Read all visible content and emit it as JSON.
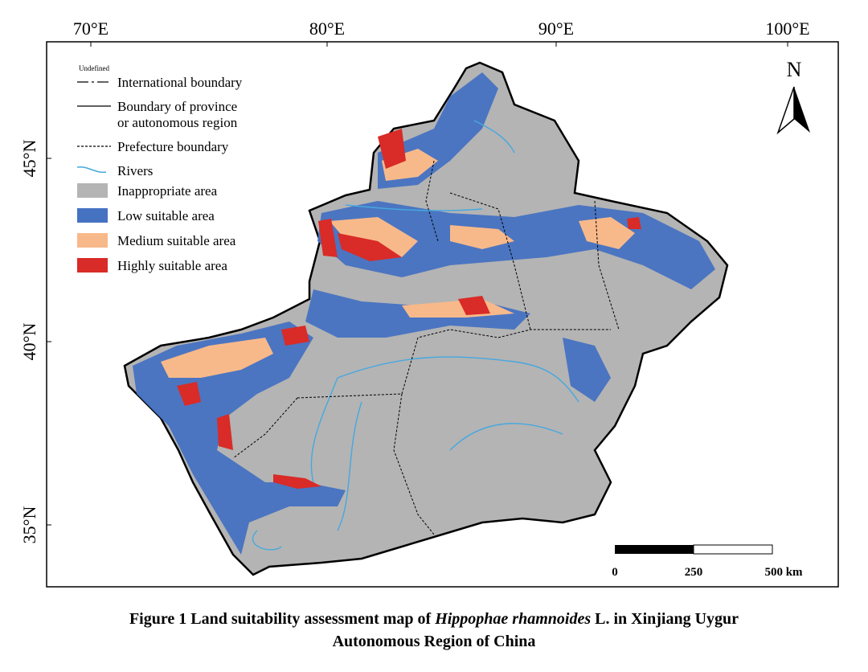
{
  "graticule": {
    "longitudes": [
      "70°E",
      "80°E",
      "90°E",
      "100°E"
    ],
    "latitudes": [
      "45°N",
      "40°N",
      "35°N"
    ]
  },
  "legend": {
    "undefined_note": "Undefined",
    "lines": [
      {
        "label": "International boundary",
        "style": "dashdot"
      },
      {
        "label": "Boundary of province",
        "label2": "or autonomous region",
        "style": "solid"
      },
      {
        "label": "Prefecture boundary",
        "style": "dotted"
      },
      {
        "label": "Rivers",
        "style": "river"
      }
    ],
    "areas": [
      {
        "label": "Inappropriate area",
        "color": "#b4b4b4"
      },
      {
        "label": "Low suitable area",
        "color": "#4672c2"
      },
      {
        "label": "Medium suitable area",
        "color": "#f8b98a"
      },
      {
        "label": "Highly suitable area",
        "color": "#d92b27"
      }
    ]
  },
  "north": "N",
  "scale_bar": {
    "labels": [
      "0",
      "250",
      "500 km"
    ]
  },
  "caption": {
    "line1_before": "Figure 1 Land suitability assessment map of ",
    "line1_italic": "Hippophae rhamnoides",
    "line1_after": " L. in Xinjiang Uygur",
    "line2": "Autonomous Region of China"
  }
}
